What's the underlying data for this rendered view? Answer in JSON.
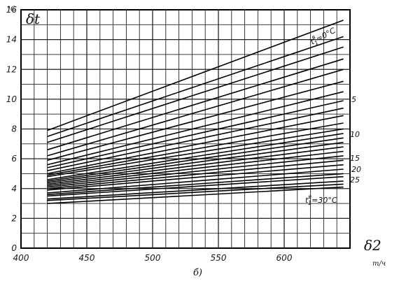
{
  "chart_data": {
    "type": "line",
    "title": "",
    "ylabel": "δt",
    "ylabel_unit": "°C",
    "xlabel": "δ2",
    "xlabel_unit": "т/ч",
    "caption": "б)",
    "xlim": [
      400,
      650
    ],
    "ylim": [
      0,
      16
    ],
    "x_ticks": [
      "400",
      "450",
      "500",
      "550",
      "600"
    ],
    "y_ticks": [
      "0",
      "2",
      "4",
      "6",
      "8",
      "10",
      "12",
      "14",
      "16"
    ],
    "grid": true,
    "annotations": [
      {
        "text": "t",
        "sup": "в",
        "sub": "1",
        "rest": "=0°C"
      },
      {
        "text": "5"
      },
      {
        "text": "10"
      },
      {
        "text": "15"
      },
      {
        "text": "20"
      },
      {
        "text": "25"
      },
      {
        "text": "t",
        "sup": "в",
        "sub": "1",
        "rest": "=30°C"
      }
    ],
    "series": [
      {
        "x": [
          420,
          645
        ],
        "y": [
          7.9,
          15.3
        ]
      },
      {
        "x": [
          420,
          645
        ],
        "y": [
          7.5,
          14.2
        ]
      },
      {
        "x": [
          420,
          645
        ],
        "y": [
          7.1,
          13.5
        ]
      },
      {
        "x": [
          420,
          645
        ],
        "y": [
          6.6,
          12.7
        ]
      },
      {
        "x": [
          420,
          645
        ],
        "y": [
          6.2,
          12.0
        ]
      },
      {
        "x": [
          420,
          645
        ],
        "y": [
          5.9,
          11.2
        ]
      },
      {
        "x": [
          420,
          645
        ],
        "y": [
          5.6,
          10.5
        ]
      },
      {
        "x": [
          420,
          645
        ],
        "y": [
          5.4,
          9.9
        ]
      },
      {
        "x": [
          420,
          645
        ],
        "y": [
          5.2,
          9.4
        ]
      },
      {
        "x": [
          420,
          645
        ],
        "y": [
          5.0,
          8.9
        ]
      },
      {
        "x": [
          420,
          645
        ],
        "y": [
          4.9,
          8.4
        ]
      },
      {
        "x": [
          420,
          645
        ],
        "y": [
          4.8,
          8.0
        ]
      },
      {
        "x": [
          420,
          645
        ],
        "y": [
          4.6,
          7.7
        ]
      },
      {
        "x": [
          420,
          645
        ],
        "y": [
          4.5,
          7.4
        ]
      },
      {
        "x": [
          420,
          645
        ],
        "y": [
          4.4,
          7.1
        ]
      },
      {
        "x": [
          420,
          645
        ],
        "y": [
          4.3,
          6.8
        ]
      },
      {
        "x": [
          420,
          645
        ],
        "y": [
          4.2,
          6.5
        ]
      },
      {
        "x": [
          420,
          645
        ],
        "y": [
          4.1,
          6.2
        ]
      },
      {
        "x": [
          420,
          645
        ],
        "y": [
          4.0,
          5.9
        ]
      },
      {
        "x": [
          420,
          645
        ],
        "y": [
          3.9,
          5.6
        ]
      },
      {
        "x": [
          420,
          645
        ],
        "y": [
          3.7,
          5.3
        ]
      },
      {
        "x": [
          420,
          645
        ],
        "y": [
          3.6,
          5.0
        ]
      },
      {
        "x": [
          420,
          645
        ],
        "y": [
          3.5,
          4.8
        ]
      },
      {
        "x": [
          420,
          645
        ],
        "y": [
          3.3,
          4.5
        ]
      },
      {
        "x": [
          420,
          645
        ],
        "y": [
          3.2,
          4.3
        ]
      },
      {
        "x": [
          420,
          645
        ],
        "y": [
          3.0,
          4.1
        ]
      }
    ]
  }
}
